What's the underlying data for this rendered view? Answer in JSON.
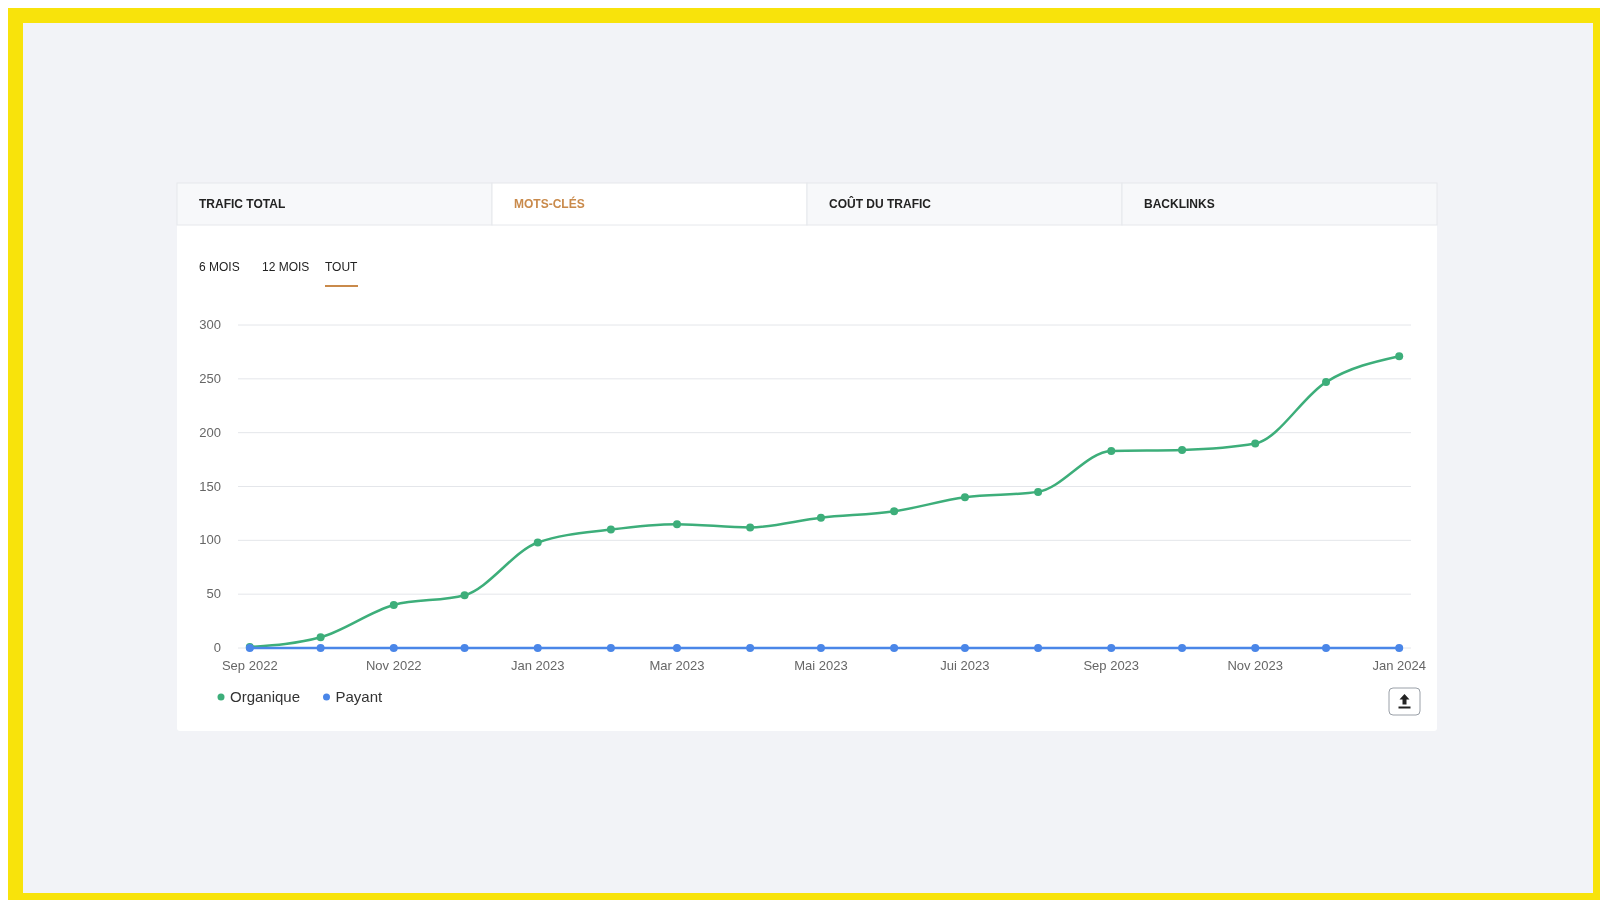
{
  "chart_data": {
    "type": "line",
    "annotations": [
      "TRAFIC TOTAL",
      "MOTS-CLÉS",
      "COÛT DU TRAFIC",
      "BACKLINKS",
      "6 MOIS",
      "12 MOIS",
      "TOUT"
    ],
    "x": [
      "2022-09-01",
      "2022-10-01",
      "2022-11-01",
      "2022-12-01",
      "2023-01-01",
      "2023-02-01",
      "2023-03-01",
      "2023-04-01",
      "2023-05-01",
      "2023-06-01",
      "2023-07-01",
      "2023-08-01",
      "2023-09-01",
      "2023-10-01",
      "2023-11-01",
      "2023-12-01",
      "2024-01-01"
    ],
    "series": [
      {
        "name": "Organique",
        "color": "#3dae7a",
        "values": [
          1,
          10,
          40,
          49,
          98,
          110,
          115,
          112,
          121,
          127,
          140,
          145,
          183,
          184,
          190,
          247,
          271
        ]
      },
      {
        "name": "Payant",
        "color": "#4a86e8",
        "values": [
          0,
          0,
          0,
          0,
          0,
          0,
          0,
          0,
          0,
          0,
          0,
          0,
          0,
          0,
          0,
          0,
          0
        ]
      }
    ],
    "xlim": [
      "2022-08-27",
      "2024-01-06"
    ],
    "xticks": [
      {
        "value": "2022-09-01",
        "label": "Sep 2022"
      },
      {
        "value": "2022-11-01",
        "label": "Nov 2022"
      },
      {
        "value": "2023-01-01",
        "label": "Jan 2023"
      },
      {
        "value": "2023-03-01",
        "label": "Mar 2023"
      },
      {
        "value": "2023-05-01",
        "label": "Mai 2023"
      },
      {
        "value": "2023-07-01",
        "label": "Jui 2023"
      },
      {
        "value": "2023-09-01",
        "label": "Sep 2023"
      },
      {
        "value": "2023-11-01",
        "label": "Nov 2023"
      },
      {
        "value": "2024-01-01",
        "label": "Jan 2024"
      }
    ],
    "ylim": [
      0,
      300
    ],
    "yticks": [
      0,
      50,
      100,
      150,
      200,
      250,
      300
    ],
    "grid": "y",
    "legend": "bottom left",
    "marker": "circle",
    "line_style": "solid"
  }
}
